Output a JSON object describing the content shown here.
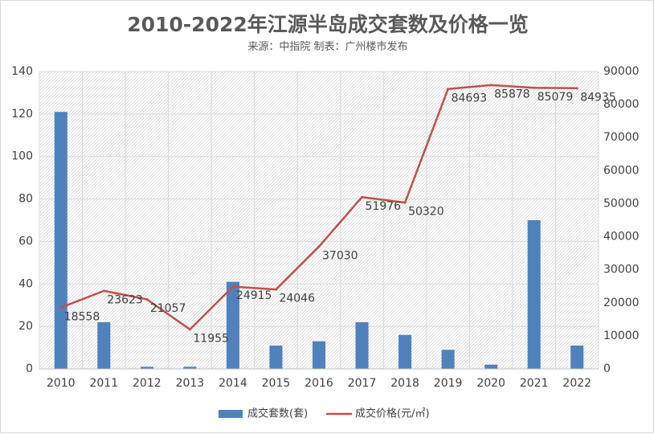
{
  "chart_data": {
    "type": "bar+line",
    "title": "2010-2022年江源半岛成交套数及价格一览",
    "subtitle": "来源：中指院 制表：广州楼市发布",
    "categories": [
      "2010",
      "2011",
      "2012",
      "2013",
      "2014",
      "2015",
      "2016",
      "2017",
      "2018",
      "2019",
      "2020",
      "2021",
      "2022"
    ],
    "series": [
      {
        "name": "成交套数(套)",
        "type": "bar",
        "axis": "left",
        "color": "#4f81bd",
        "values": [
          121,
          22,
          1,
          1,
          41,
          11,
          13,
          22,
          16,
          9,
          2,
          70,
          11
        ]
      },
      {
        "name": "成交价格(元/㎡)",
        "type": "line",
        "axis": "right",
        "color": "#c0504d",
        "values": [
          18558,
          23623,
          21057,
          11955,
          24915,
          24046,
          37030,
          51976,
          50320,
          84693,
          85878,
          85079,
          84935
        ],
        "labels": [
          "18558",
          "23623",
          "21057",
          "11955",
          "24915",
          "24046",
          "37030",
          "51976",
          "50320",
          "84693",
          "85878",
          "85079",
          "84935"
        ]
      }
    ],
    "y_left": {
      "min": 0,
      "max": 140,
      "step": 20,
      "ticks": [
        "0",
        "20",
        "40",
        "60",
        "80",
        "100",
        "120",
        "140"
      ]
    },
    "y_right": {
      "min": 0,
      "max": 90000,
      "step": 10000,
      "ticks": [
        "0",
        "10000",
        "20000",
        "30000",
        "40000",
        "50000",
        "60000",
        "70000",
        "80000",
        "90000"
      ]
    },
    "grid": true,
    "legend": "bottom"
  }
}
